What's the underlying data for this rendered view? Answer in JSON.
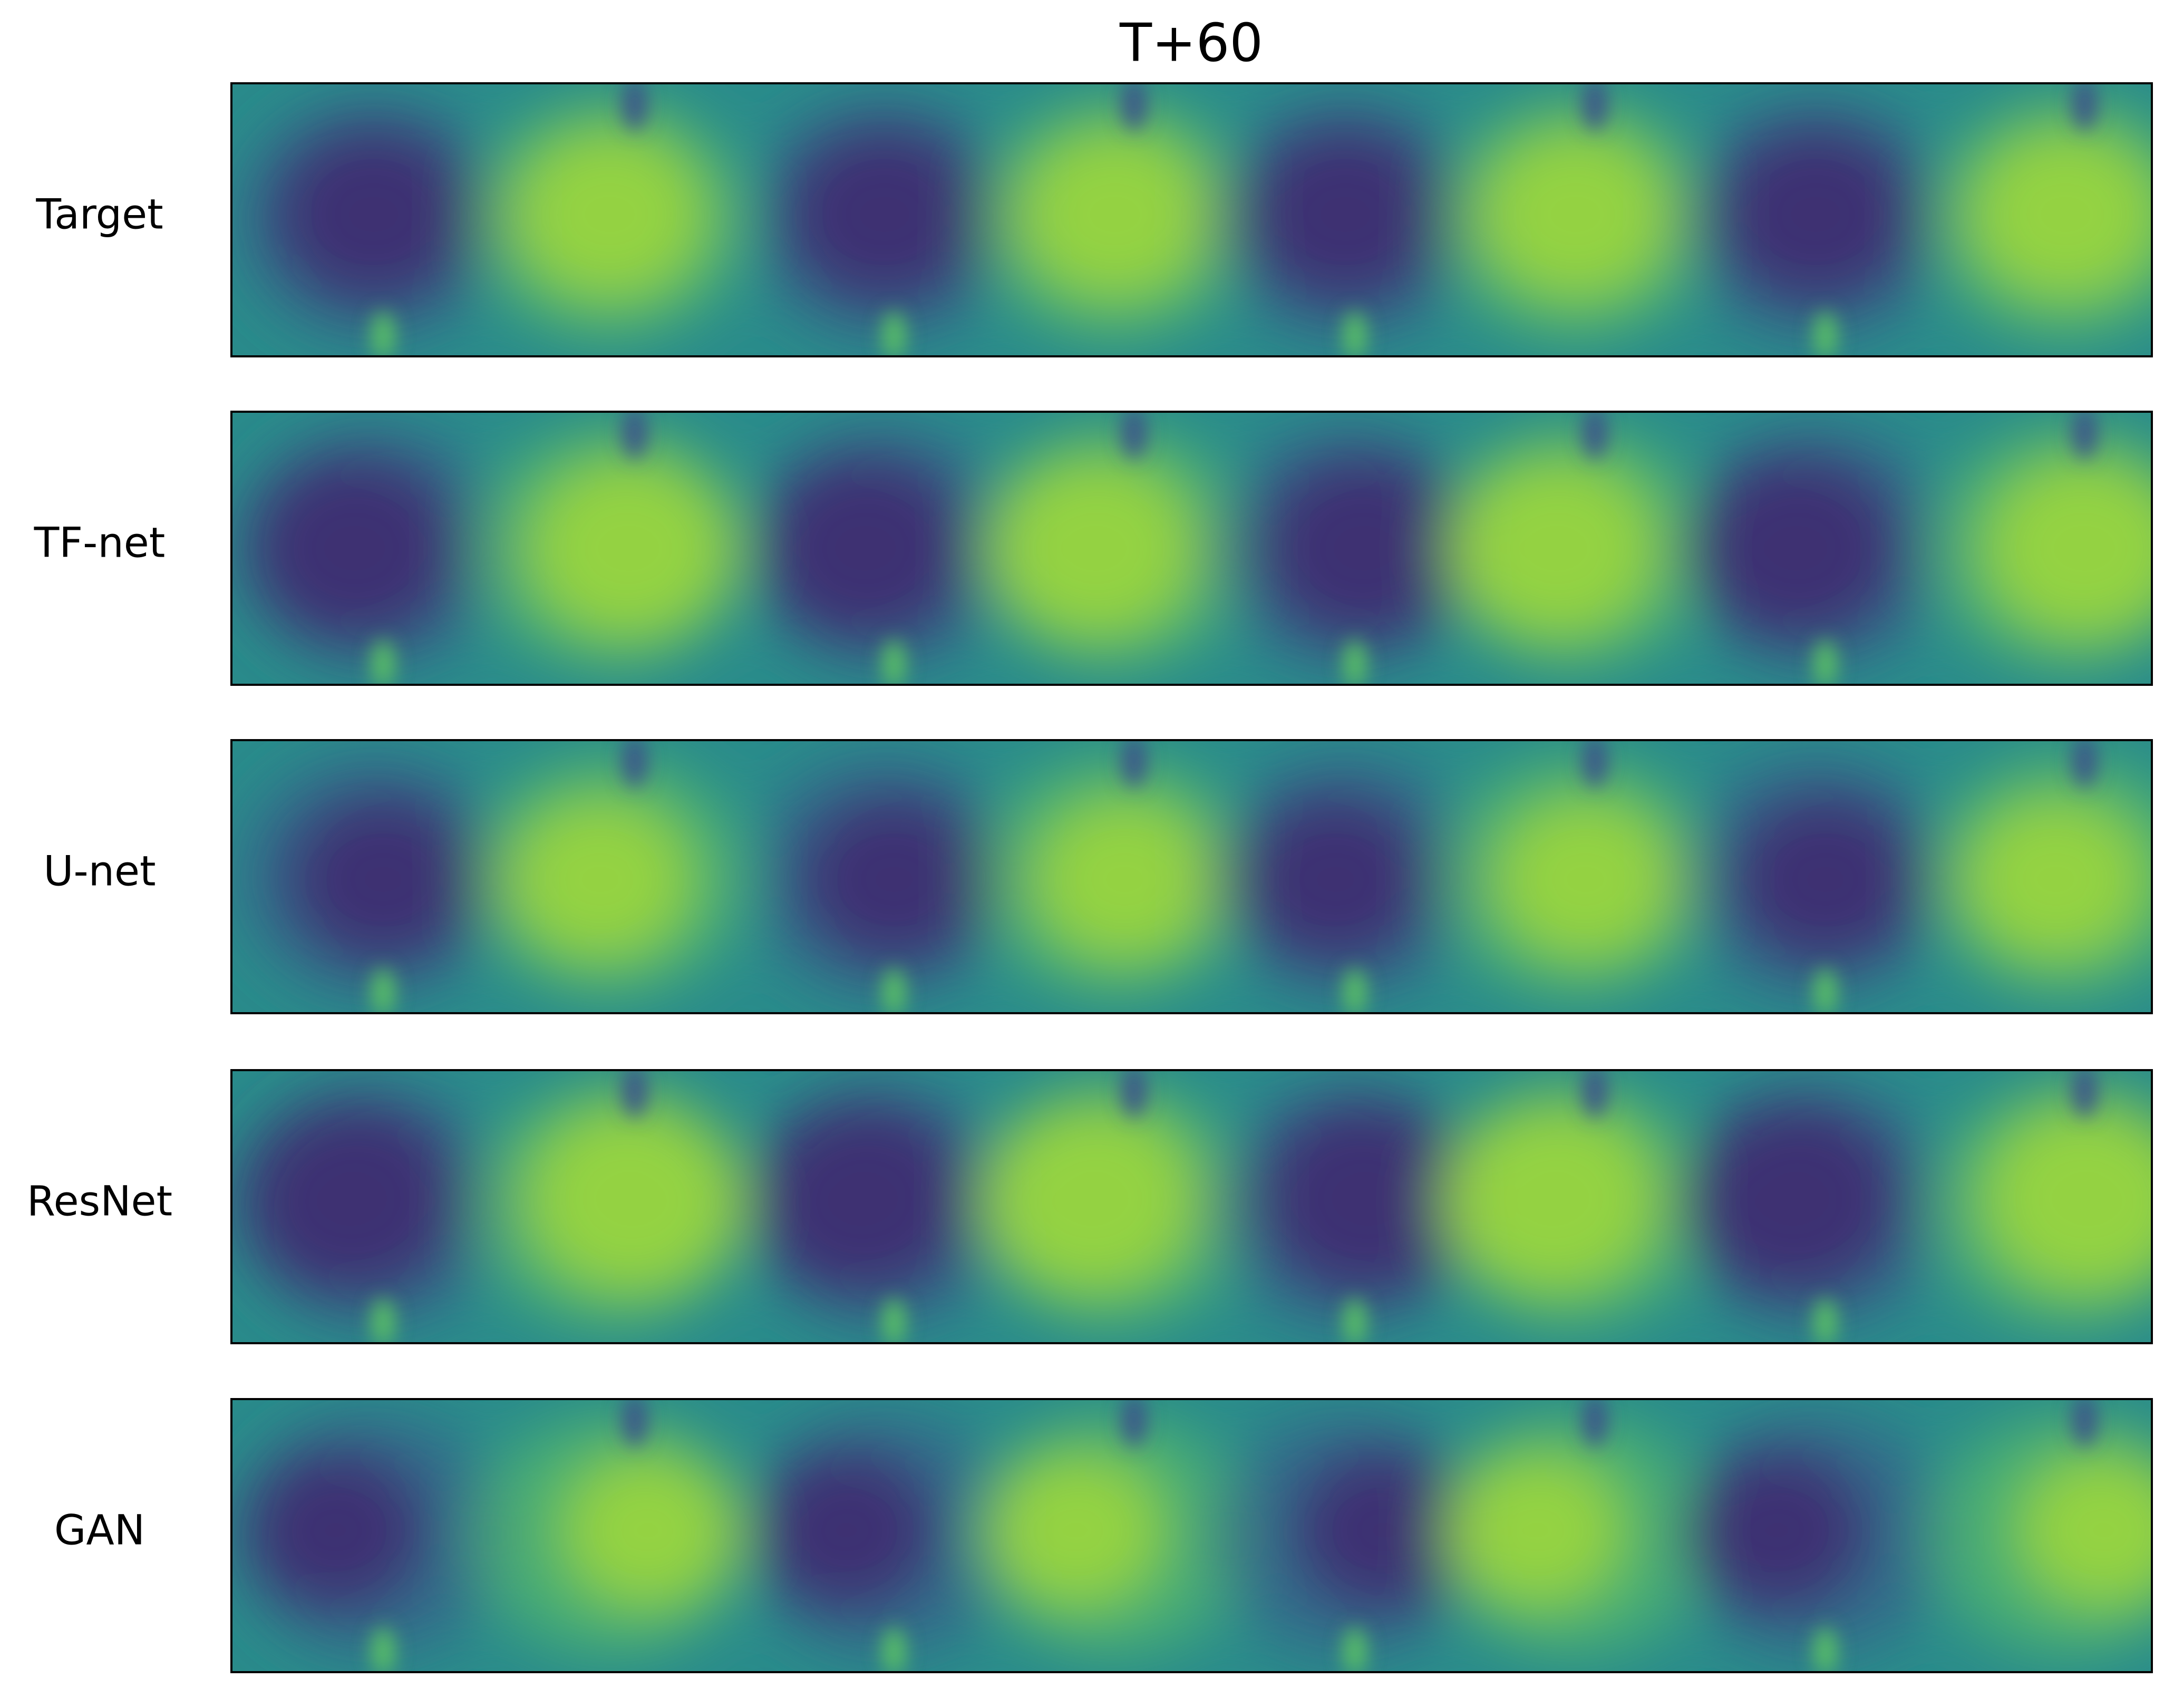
{
  "figure": {
    "title": "T+60",
    "panels": [
      {
        "label": "Target"
      },
      {
        "label": "TF-net"
      },
      {
        "label": "U-net"
      },
      {
        "label": "ResNet"
      },
      {
        "label": "GAN"
      }
    ]
  }
}
